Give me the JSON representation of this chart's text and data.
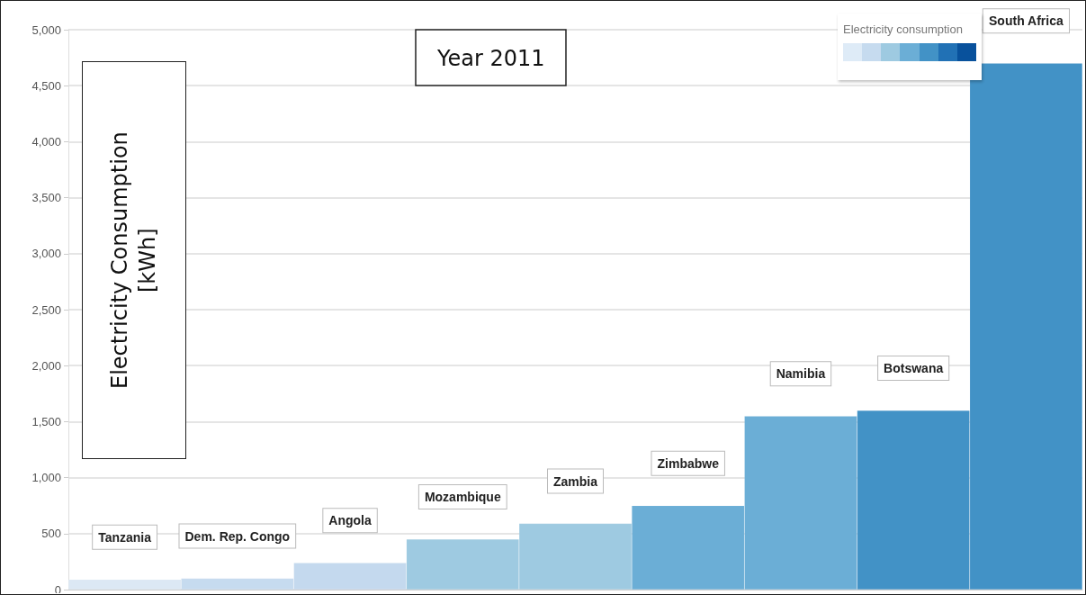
{
  "chart_data": {
    "type": "bar",
    "title": "Year 2011",
    "ylabel": "Electricity Consumption [kWh]",
    "legend_title": "Electricity consumption",
    "categories": [
      "Tanzania",
      "Dem. Rep. Congo",
      "Angola",
      "Mozambique",
      "Zambia",
      "Zimbabwe",
      "Namibia",
      "Botswana",
      "South Africa"
    ],
    "values": [
      90,
      100,
      240,
      450,
      590,
      750,
      1550,
      1600,
      4700
    ],
    "colors": [
      "#dce8f4",
      "#c6dbef",
      "#c4d9ee",
      "#9ecae1",
      "#9ecae1",
      "#6baed6",
      "#6baed6",
      "#4292c6",
      "#4292c6"
    ],
    "ylim": [
      0,
      5000
    ],
    "yticks": [
      {
        "value": 0,
        "label": "0"
      },
      {
        "value": 500,
        "label": "500"
      },
      {
        "value": 1000,
        "label": "1,000"
      },
      {
        "value": 1500,
        "label": "1,500"
      },
      {
        "value": 2000,
        "label": "2,000"
      },
      {
        "value": 2500,
        "label": "2,500"
      },
      {
        "value": 3000,
        "label": "3,000"
      },
      {
        "value": 3500,
        "label": "3,500"
      },
      {
        "value": 4000,
        "label": "4,000"
      },
      {
        "value": 4500,
        "label": "4,500"
      },
      {
        "value": 5000,
        "label": "5,000"
      }
    ],
    "grid": "y",
    "tick_labels": "y"
  }
}
